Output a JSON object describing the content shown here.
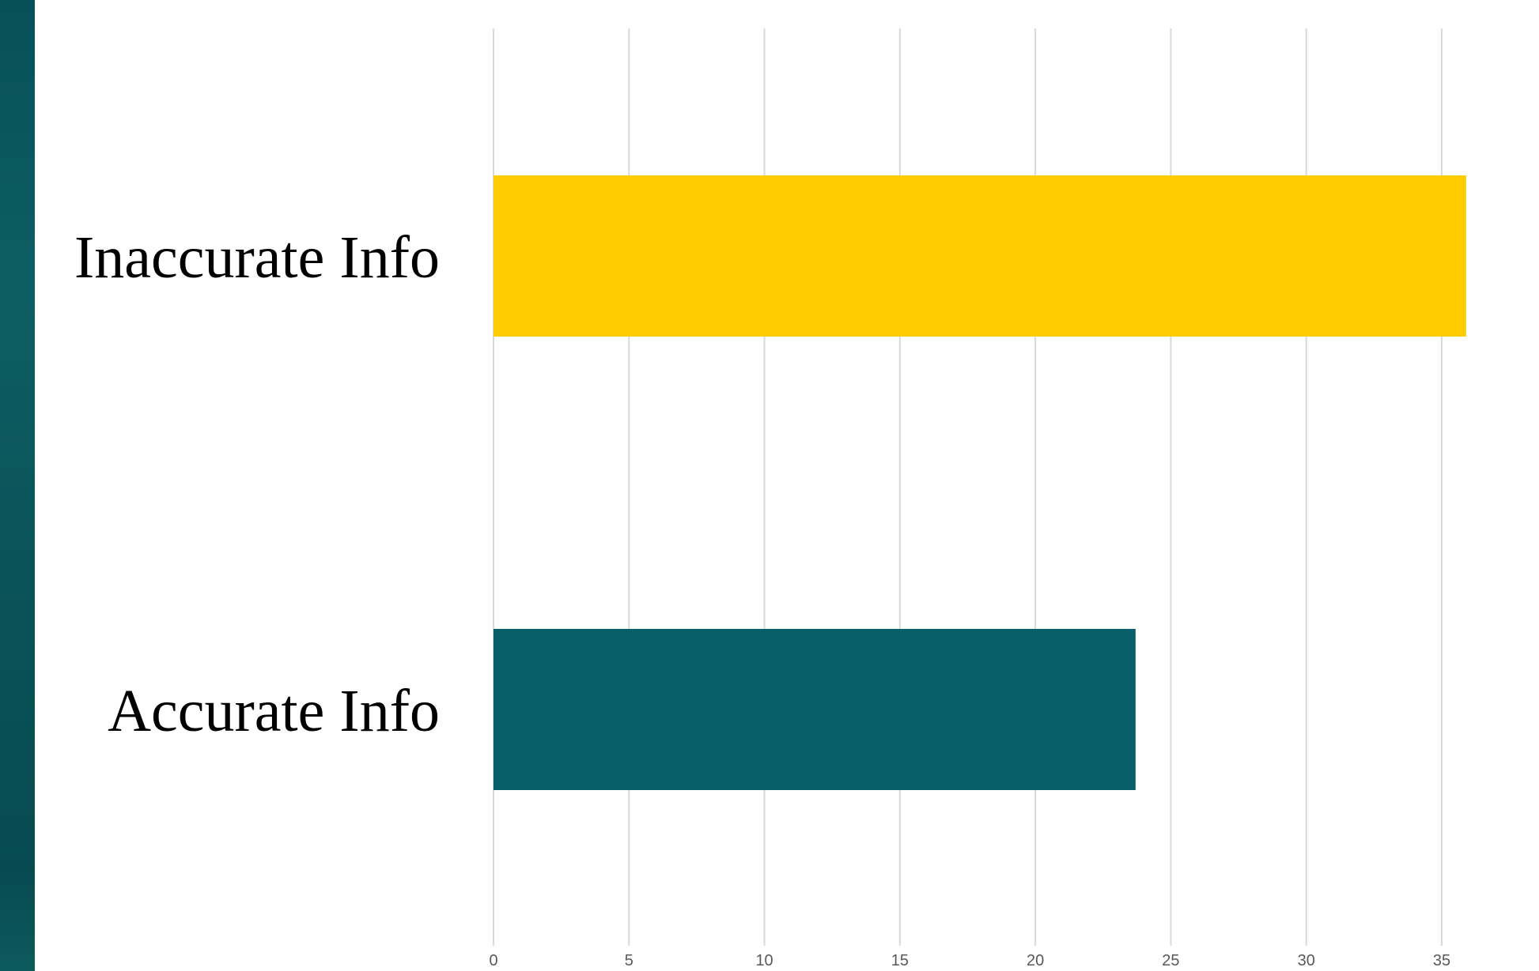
{
  "decor": {
    "side_bar_color": "#0a555b"
  },
  "chart_data": {
    "type": "bar",
    "orientation": "horizontal",
    "categories": [
      "Inaccurate Info",
      "Accurate Info"
    ],
    "values": [
      35.9,
      23.7
    ],
    "colors": [
      "#ffcc00",
      "#085f6a"
    ],
    "xlim": [
      0,
      35
    ],
    "xticks": [
      0,
      5,
      10,
      15,
      20,
      25,
      30,
      35
    ],
    "title": "",
    "xlabel": "",
    "ylabel": "",
    "grid": "vertical",
    "legend": "none"
  }
}
